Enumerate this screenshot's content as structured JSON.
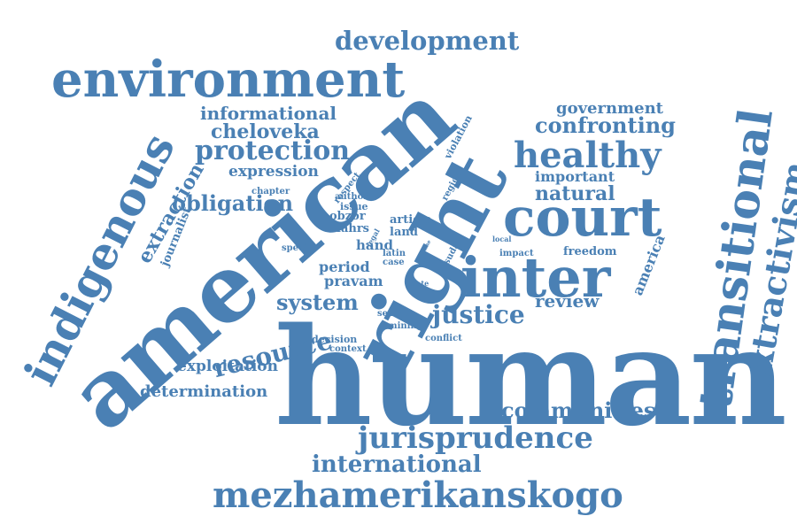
{
  "cloud": {
    "color": "#4a80b4",
    "words": {
      "american": "american",
      "human": "human",
      "right": "right",
      "inter": "inter",
      "court": "court",
      "environment": "environment",
      "indigenous": "indigenous",
      "transitional": "transitional",
      "extractivism": "extractivism",
      "mezhamerikanskogo": "mezhamerikanskogo",
      "jurisprudence": "jurisprudence",
      "development": "development",
      "healthy": "healthy",
      "protection": "protection",
      "justice": "justice",
      "international": "international",
      "communities": "communities",
      "resource": "resource",
      "system": "system",
      "obligation": "obligation",
      "confronting": "confronting",
      "natural": "natural",
      "informational": "informational",
      "cheloveka": "cheloveka",
      "government": "government",
      "important": "important",
      "determination": "determination",
      "exploitation": "exploitation",
      "expression": "expression",
      "review": "review",
      "extraction": "extraction",
      "journalist": "journalist",
      "freedom": "freedom",
      "america": "america",
      "period": "period",
      "pravam": "pravam",
      "hand": "hand",
      "land": "land",
      "article": "article",
      "obzor": "obzor",
      "iahrs": "iahrs",
      "issue": "issue",
      "author": "author",
      "chapter": "chapter",
      "respect": "respect",
      "violation": "violation",
      "region": "region",
      "special": "special",
      "decision": "decision",
      "context": "context",
      "conflict": "conflict",
      "sexual": "sexual",
      "mining": "mining",
      "impact": "impact",
      "latin": "latin",
      "case": "case",
      "suda": "suda",
      "local": "local",
      "state": "state",
      "legal": "legal",
      "self": "self",
      "time": "time"
    }
  }
}
